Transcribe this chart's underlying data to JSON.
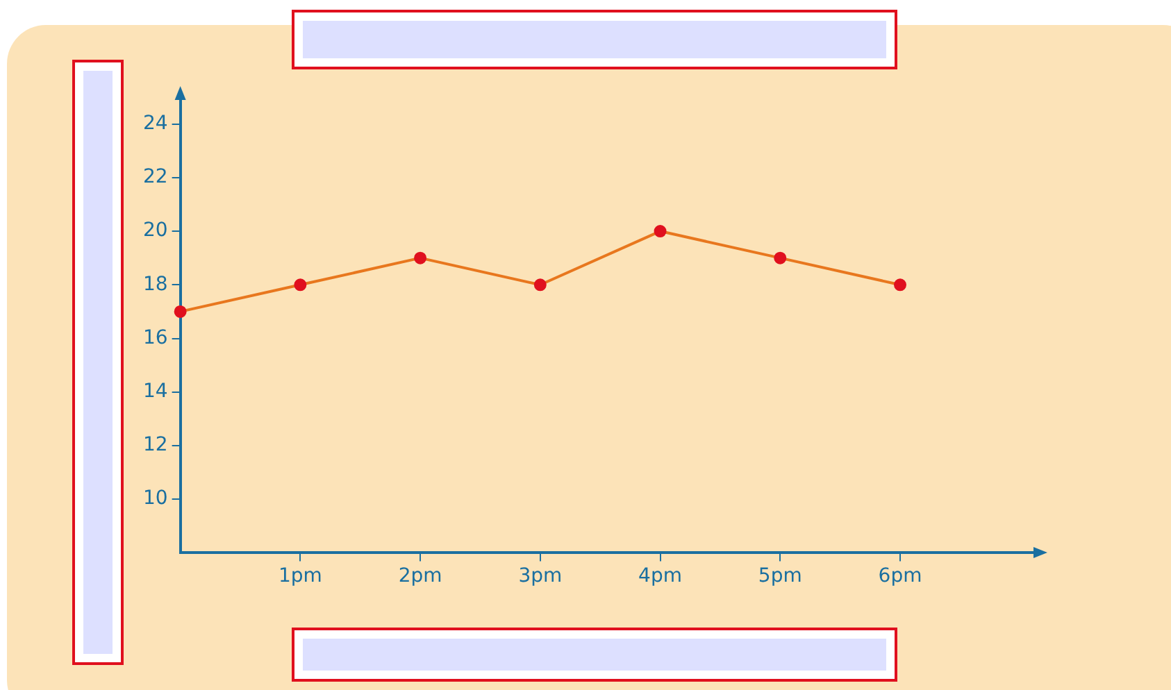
{
  "chart_data": {
    "type": "line",
    "categories": [
      null,
      "1pm",
      "2pm",
      "3pm",
      "4pm",
      "5pm",
      "6pm"
    ],
    "series": [
      {
        "color": "#e8771e",
        "values": [
          17,
          18,
          19,
          18,
          20,
          19,
          18
        ]
      }
    ],
    "marker": "circle",
    "line_style": "solid",
    "grid": false,
    "legend": false,
    "ylim": [
      8,
      25
    ],
    "yticks": [
      10,
      12,
      14,
      16,
      18,
      20,
      22,
      24
    ]
  }
}
